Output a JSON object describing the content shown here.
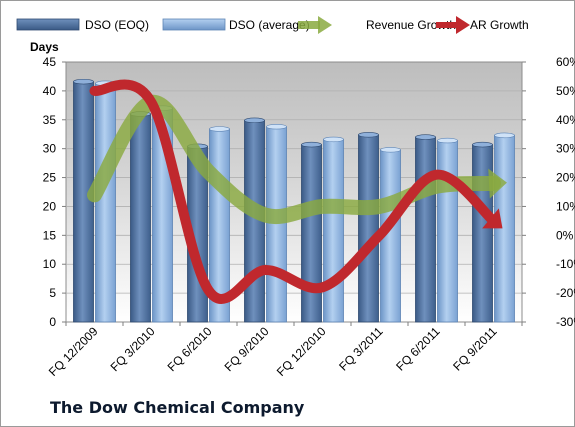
{
  "chart_data": {
    "type": "bar",
    "title": "The Dow Chemical Company",
    "ylabel": "Days",
    "ylim": [
      0,
      45
    ],
    "y2lim": [
      -30,
      60
    ],
    "yticks": [
      "0",
      "5",
      "10",
      "15",
      "20",
      "25",
      "30",
      "35",
      "40",
      "45"
    ],
    "y2ticks": [
      "-30%",
      "-20%",
      "-10%",
      "0%",
      "10%",
      "20%",
      "30%",
      "40%",
      "50%",
      "60%"
    ],
    "categories": [
      "FQ 12/2009",
      "FQ 3/2010",
      "FQ 6/2010",
      "FQ 9/2010",
      "FQ 12/2010",
      "FQ 3/2011",
      "FQ 6/2011",
      "FQ 9/2011"
    ],
    "grid": true,
    "legend_position": "top",
    "series": [
      {
        "name": "DSO (EOQ)",
        "kind": "bar",
        "axis": "left",
        "color": "#4a6c99",
        "values": [
          41.6,
          36.0,
          30.4,
          34.9,
          30.7,
          32.4,
          32.0,
          30.7
        ]
      },
      {
        "name": "DSO (average)",
        "kind": "bar",
        "axis": "left",
        "color": "#8db4e2",
        "values": [
          41.3,
          37.0,
          33.4,
          33.8,
          31.6,
          29.8,
          31.4,
          32.3
        ]
      },
      {
        "name": "Revenue Growth",
        "kind": "line-arrow",
        "axis": "right",
        "color": "#8aaa3f",
        "values": [
          14,
          46,
          22,
          7,
          10,
          10,
          17,
          18
        ]
      },
      {
        "name": "AR Growth",
        "kind": "line-arrow",
        "axis": "right",
        "color": "#c0282d",
        "values": [
          50,
          46,
          -19,
          -12,
          -18,
          0,
          21,
          5
        ]
      }
    ]
  }
}
